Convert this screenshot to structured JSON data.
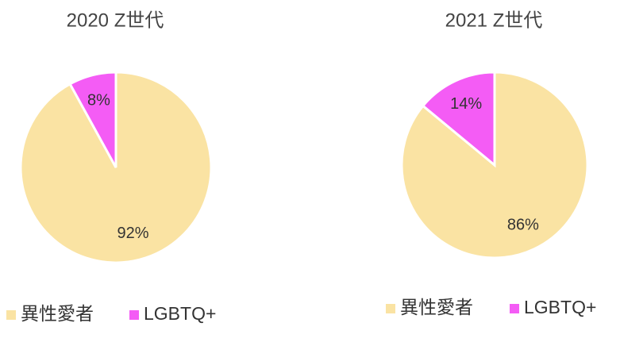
{
  "chart_data": [
    {
      "type": "pie",
      "title": "2020 Z世代",
      "categories": [
        "異性愛者",
        "LGBTQ+"
      ],
      "values": [
        92,
        8
      ],
      "value_labels": [
        "92%",
        "8%"
      ],
      "colors": [
        "#fae3a3",
        "#f45cf5"
      ]
    },
    {
      "type": "pie",
      "title": "2021 Z世代",
      "categories": [
        "異性愛者",
        "LGBTQ+"
      ],
      "values": [
        86,
        14
      ],
      "value_labels": [
        "86%",
        "14%"
      ],
      "colors": [
        "#fae3a3",
        "#f45cf5"
      ]
    }
  ]
}
